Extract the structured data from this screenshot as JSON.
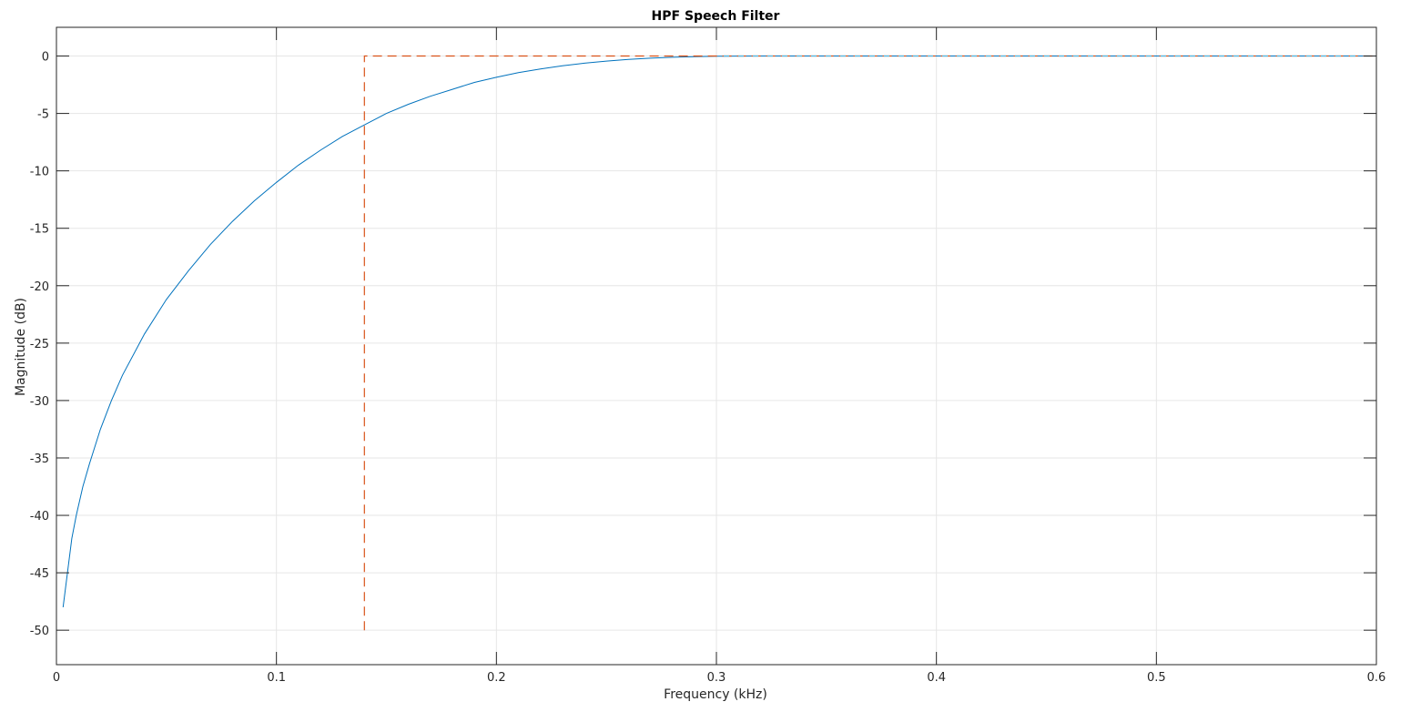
{
  "chart_data": {
    "type": "line",
    "title": "HPF Speech Filter",
    "xlabel": "Frequency (kHz)",
    "ylabel": "Magnitude (dB)",
    "xlim": [
      0,
      0.6
    ],
    "ylim": [
      -53,
      2.5
    ],
    "xticks": [
      0,
      0.1,
      0.2,
      0.3,
      0.4,
      0.5,
      0.6
    ],
    "xtick_labels": [
      "0",
      "0.1",
      "0.2",
      "0.3",
      "0.4",
      "0.5",
      "0.6"
    ],
    "yticks": [
      0,
      -5,
      -10,
      -15,
      -20,
      -25,
      -30,
      -35,
      -40,
      -45,
      -50
    ],
    "ytick_labels": [
      "0",
      "-5",
      "-10",
      "-15",
      "-20",
      "-25",
      "-30",
      "-35",
      "-40",
      "-45",
      "-50"
    ],
    "grid": true,
    "legend": "none",
    "colors": {
      "response": "#0072BD",
      "mask": "#D95319",
      "mask_overlay": "#4DBEEE",
      "grid": "#e6e6e6",
      "axes": "#262626"
    },
    "series": [
      {
        "style": "solid",
        "x": [
          0.003,
          0.005,
          0.007,
          0.009,
          0.012,
          0.015,
          0.02,
          0.025,
          0.03,
          0.04,
          0.05,
          0.06,
          0.07,
          0.08,
          0.09,
          0.1,
          0.11,
          0.12,
          0.13,
          0.14,
          0.15,
          0.16,
          0.17,
          0.18,
          0.19,
          0.2,
          0.21,
          0.22,
          0.23,
          0.24,
          0.25,
          0.26,
          0.27,
          0.28,
          0.29,
          0.3,
          0.32,
          0.35,
          0.4,
          0.45,
          0.5,
          0.55,
          0.6
        ],
        "y": [
          -48,
          -45,
          -42,
          -40,
          -37.5,
          -35.5,
          -32.5,
          -30,
          -27.8,
          -24.2,
          -21.2,
          -18.7,
          -16.4,
          -14.4,
          -12.6,
          -11,
          -9.5,
          -8.2,
          -7,
          -6,
          -5,
          -4.2,
          -3.5,
          -2.9,
          -2.3,
          -1.85,
          -1.45,
          -1.12,
          -0.85,
          -0.62,
          -0.44,
          -0.3,
          -0.19,
          -0.11,
          -0.05,
          -0.02,
          0,
          0,
          0,
          0,
          0,
          0,
          0
        ]
      },
      {
        "style": "dashed",
        "x": [
          0.14,
          0.14,
          0.6
        ],
        "y": [
          -50,
          0,
          0
        ]
      }
    ]
  }
}
